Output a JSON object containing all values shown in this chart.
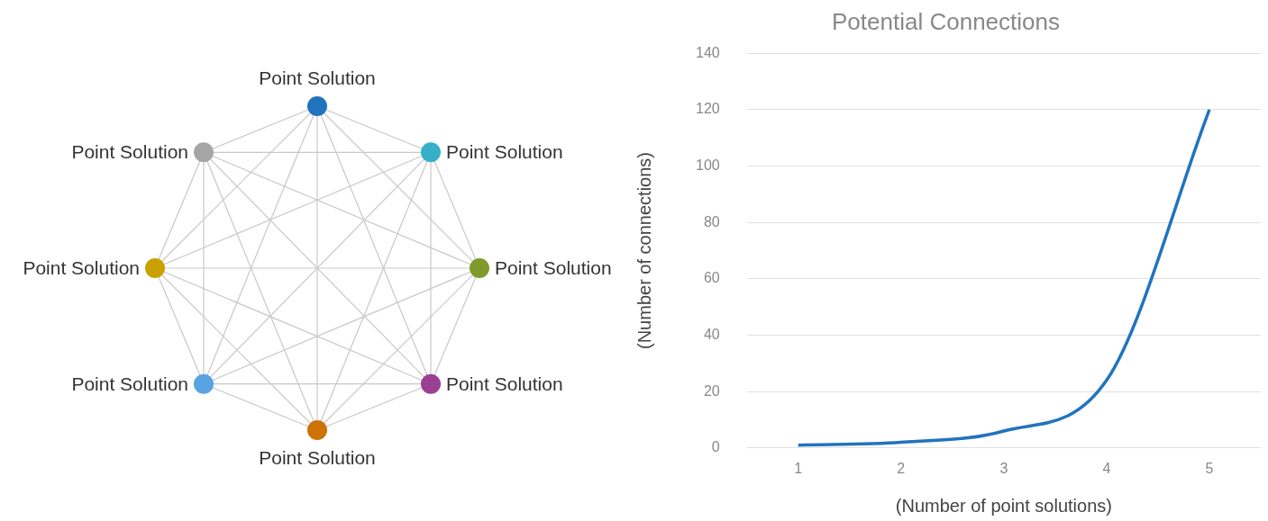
{
  "chart_data": [
    {
      "type": "other",
      "annotations": [
        "Point Solution",
        "Point Solution",
        "Point Solution",
        "Point Solution",
        "Point Solution",
        "Point Solution",
        "Point Solution",
        "Point Solution"
      ]
    },
    {
      "type": "line",
      "title": "Potential Connections",
      "xlabel": "(Number of point solutions)",
      "ylabel": "(Number of connections)",
      "categories": [
        "1",
        "2",
        "3",
        "4",
        "5"
      ],
      "series": [
        {
          "color": "#2273be",
          "values": [
            1,
            2,
            6,
            24,
            120
          ]
        }
      ],
      "ylim": [
        0,
        140
      ],
      "yticks": [
        0,
        20,
        40,
        60,
        80,
        100,
        120,
        140
      ],
      "grid": "y",
      "legend": false,
      "marker": "none"
    }
  ]
}
